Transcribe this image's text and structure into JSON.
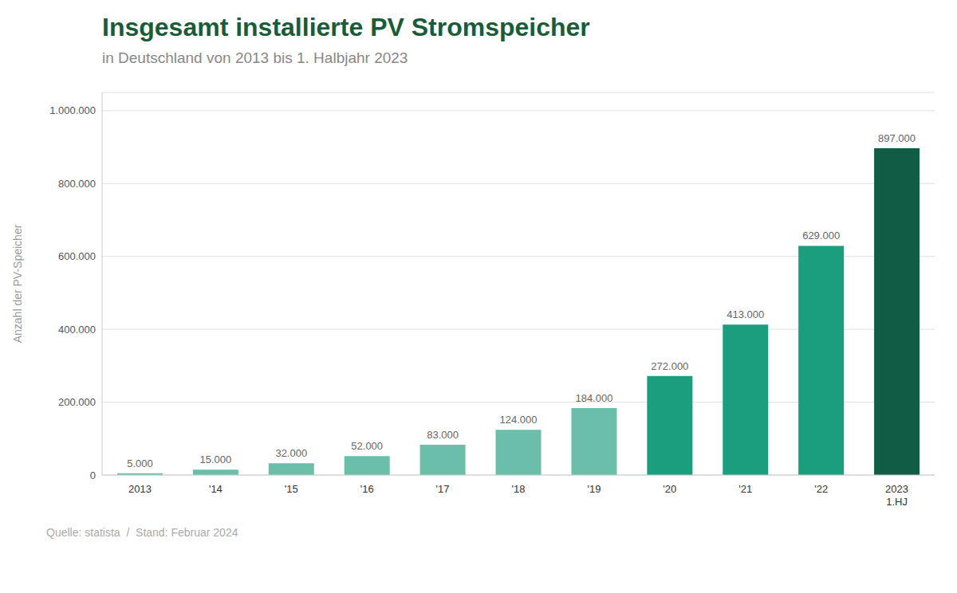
{
  "chart_data": {
    "type": "bar",
    "title": "Insgesamt installierte PV Stromspeicher",
    "subtitle": "in Deutschland von 2013 bis 1. Halbjahr 2023",
    "annotations": [
      "Quelle: statista  /  Stand: Februar 2024"
    ],
    "ylabel": "Anzahl der PV-Speicher",
    "categories": [
      "2013",
      "'14",
      "'15",
      "'16",
      "'17",
      "'18",
      "'19",
      "'20",
      "'21",
      "'22",
      "2023\n1.HJ"
    ],
    "values": [
      5000,
      15000,
      32000,
      52000,
      83000,
      124000,
      184000,
      272000,
      413000,
      629000,
      897000
    ],
    "value_labels": [
      "5.000",
      "15.000",
      "32.000",
      "52.000",
      "83.000",
      "124.000",
      "184.000",
      "272.000",
      "413.000",
      "629.000",
      "897.000"
    ],
    "colors": [
      "#6bbfaa",
      "#6bbfaa",
      "#6bbfaa",
      "#6bbfaa",
      "#6bbfaa",
      "#6bbfaa",
      "#6bbfaa",
      "#1a9e7e",
      "#1a9e7e",
      "#1a9e7e",
      "#115c44"
    ],
    "ylim": [
      0,
      1050000
    ],
    "yticks": [
      0,
      {
        "value": 200000,
        "label": "200.000"
      },
      {
        "value": 400000,
        "label": "400.000"
      },
      {
        "value": 600000,
        "label": "600.000"
      },
      {
        "value": 800000,
        "label": "800.000"
      },
      {
        "value": 1000000,
        "label": "1.000.000"
      }
    ],
    "grid": true,
    "data_labels": true
  }
}
